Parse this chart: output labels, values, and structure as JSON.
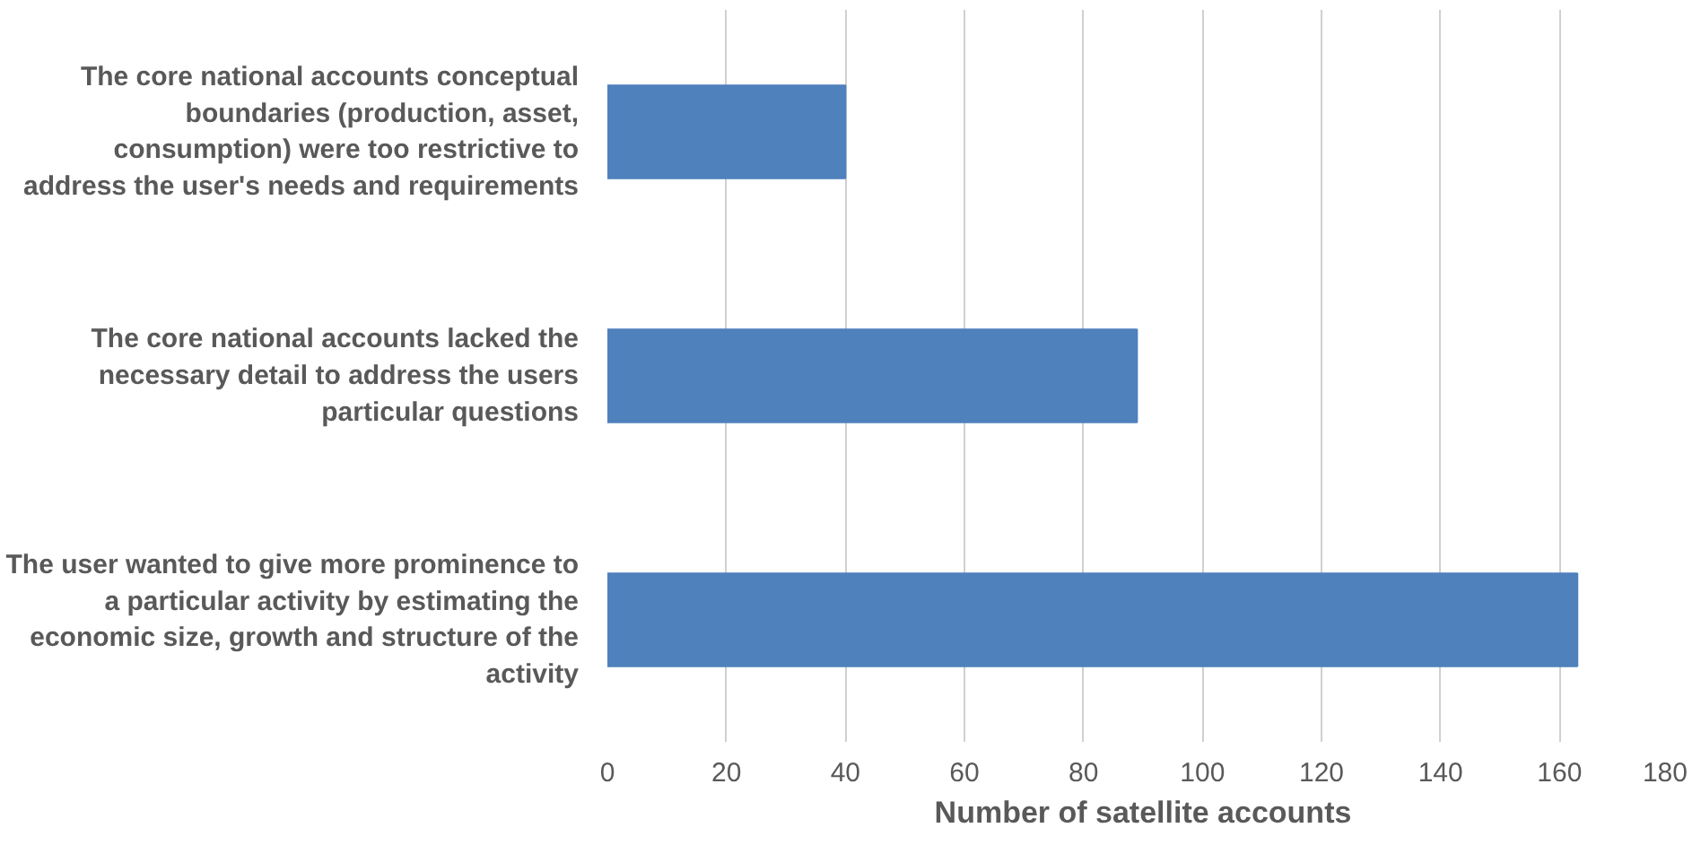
{
  "chart_data": {
    "type": "bar",
    "orientation": "horizontal",
    "xlabel": "Number of satellite accounts",
    "categories": [
      "The core national accounts conceptual boundaries (production, asset, consumption) were too restrictive to address the user's needs and requirements",
      "The core national accounts lacked the necessary detail to address the users particular questions",
      "The user wanted to give more prominence to a particular activity by estimating the economic size, growth and structure of the activity"
    ],
    "values": [
      40,
      89,
      163
    ],
    "color": "#4f81bd",
    "xlim": [
      0,
      180
    ],
    "xticks": [
      0,
      20,
      40,
      60,
      80,
      100,
      120,
      140,
      160,
      180
    ],
    "grid": "x"
  }
}
